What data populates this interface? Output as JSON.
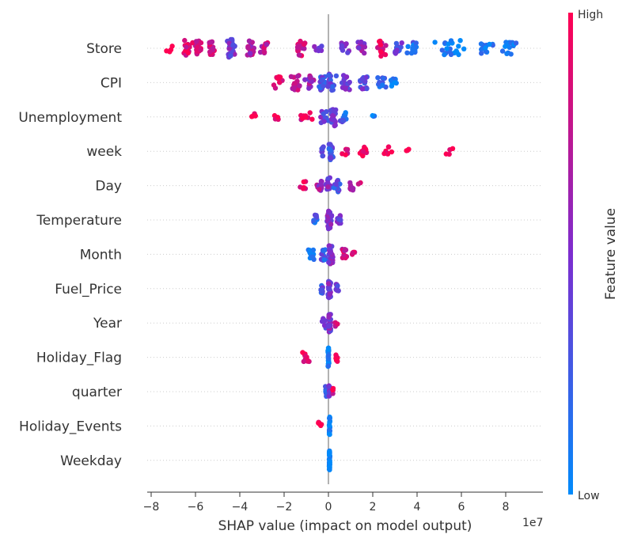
{
  "chart_data": {
    "type": "scatter",
    "subtype": "shap-beeswarm",
    "xlabel": "SHAP value (impact on model output)",
    "x_scale_note": "1e7",
    "xlim": [
      -8.5,
      9.5
    ],
    "xticks": [
      -8,
      -6,
      -4,
      -2,
      0,
      2,
      4,
      6,
      8
    ],
    "xtick_labels": [
      "−8",
      "−6",
      "−4",
      "−2",
      "0",
      "2",
      "4",
      "6",
      "8"
    ],
    "colorbar": {
      "label": "Feature value",
      "high_label": "High",
      "low_label": "Low",
      "high_color": "#ff0052",
      "low_color": "#008bfb"
    },
    "features": [
      {
        "name": "Store",
        "clusters": [
          [
            -7.2,
            0.6,
            1.0,
            4
          ],
          [
            -6.4,
            0.3,
            0.9,
            20
          ],
          [
            -5.9,
            0.3,
            0.85,
            18
          ],
          [
            -5.3,
            0.3,
            0.8,
            16
          ],
          [
            -4.4,
            0.25,
            0.45,
            24
          ],
          [
            -3.5,
            0.3,
            0.7,
            18
          ],
          [
            -2.9,
            0.3,
            0.75,
            12
          ],
          [
            -1.3,
            0.3,
            0.8,
            20
          ],
          [
            -0.5,
            0.4,
            0.5,
            6
          ],
          [
            0.7,
            0.3,
            0.55,
            12
          ],
          [
            1.5,
            0.3,
            0.6,
            14
          ],
          [
            2.4,
            0.25,
            0.85,
            20
          ],
          [
            3.1,
            0.3,
            0.4,
            14
          ],
          [
            3.8,
            0.35,
            0.2,
            16
          ],
          [
            5.5,
            0.8,
            0.05,
            20
          ],
          [
            7.1,
            0.5,
            0.1,
            14
          ],
          [
            8.2,
            0.4,
            0.05,
            14
          ]
        ]
      },
      {
        "name": "CPI",
        "clusters": [
          [
            -2.3,
            0.35,
            0.9,
            14
          ],
          [
            -1.5,
            0.3,
            0.75,
            18
          ],
          [
            -0.8,
            0.3,
            0.6,
            16
          ],
          [
            -0.3,
            0.25,
            0.3,
            20
          ],
          [
            0.1,
            0.3,
            0.35,
            22
          ],
          [
            0.8,
            0.3,
            0.45,
            18
          ],
          [
            1.6,
            0.35,
            0.4,
            14
          ],
          [
            2.4,
            0.4,
            0.2,
            12
          ],
          [
            3.0,
            0.25,
            0.05,
            8
          ]
        ]
      },
      {
        "name": "Unemployment",
        "clusters": [
          [
            -3.4,
            0.2,
            1.0,
            4
          ],
          [
            -2.4,
            0.2,
            1.0,
            4
          ],
          [
            -1.0,
            0.4,
            0.9,
            10
          ],
          [
            -0.2,
            0.3,
            0.4,
            14
          ],
          [
            0.2,
            0.2,
            0.45,
            28
          ],
          [
            0.7,
            0.3,
            0.2,
            10
          ],
          [
            2.0,
            0.15,
            0.05,
            3
          ]
        ]
      },
      {
        "name": "week",
        "clusters": [
          [
            -0.3,
            0.2,
            0.4,
            10
          ],
          [
            0.1,
            0.15,
            0.3,
            22
          ],
          [
            0.7,
            0.3,
            0.9,
            6
          ],
          [
            1.6,
            0.35,
            0.95,
            10
          ],
          [
            2.6,
            0.4,
            0.95,
            8
          ],
          [
            3.6,
            0.2,
            1.0,
            3
          ],
          [
            5.5,
            0.3,
            1.0,
            4
          ]
        ]
      },
      {
        "name": "Day",
        "clusters": [
          [
            -1.2,
            0.2,
            0.95,
            6
          ],
          [
            -0.4,
            0.25,
            0.6,
            10
          ],
          [
            0.0,
            0.15,
            0.5,
            20
          ],
          [
            0.4,
            0.2,
            0.3,
            14
          ],
          [
            1.0,
            0.25,
            0.7,
            8
          ],
          [
            1.4,
            0.1,
            0.9,
            2
          ]
        ]
      },
      {
        "name": "Temperature",
        "clusters": [
          [
            -0.6,
            0.2,
            0.25,
            10
          ],
          [
            0.05,
            0.18,
            0.5,
            36
          ],
          [
            0.5,
            0.15,
            0.4,
            10
          ]
        ]
      },
      {
        "name": "Month",
        "clusters": [
          [
            -0.8,
            0.25,
            0.1,
            10
          ],
          [
            -0.2,
            0.2,
            0.25,
            14
          ],
          [
            0.1,
            0.15,
            0.5,
            26
          ],
          [
            0.7,
            0.25,
            0.8,
            12
          ],
          [
            1.1,
            0.1,
            0.9,
            4
          ]
        ]
      },
      {
        "name": "Fuel_Price",
        "clusters": [
          [
            -0.3,
            0.12,
            0.3,
            12
          ],
          [
            0.05,
            0.1,
            0.5,
            28
          ],
          [
            0.4,
            0.1,
            0.4,
            10
          ]
        ]
      },
      {
        "name": "Year",
        "clusters": [
          [
            -0.2,
            0.1,
            0.4,
            10
          ],
          [
            0.05,
            0.08,
            0.5,
            24
          ],
          [
            0.35,
            0.08,
            0.85,
            4
          ]
        ]
      },
      {
        "name": "Holiday_Flag",
        "clusters": [
          [
            -1.0,
            0.25,
            0.97,
            10
          ],
          [
            0.0,
            0.03,
            0.0,
            30
          ],
          [
            0.4,
            0.1,
            0.95,
            6
          ]
        ]
      },
      {
        "name": "quarter",
        "clusters": [
          [
            -0.1,
            0.06,
            0.3,
            10
          ],
          [
            0.05,
            0.05,
            0.5,
            16
          ],
          [
            0.2,
            0.05,
            0.9,
            4
          ]
        ]
      },
      {
        "name": "Holiday_Events",
        "clusters": [
          [
            -0.4,
            0.12,
            0.95,
            6
          ],
          [
            0.05,
            0.03,
            0.0,
            26
          ]
        ]
      },
      {
        "name": "Weekday",
        "clusters": [
          [
            0.05,
            0.02,
            0.0,
            40
          ]
        ]
      }
    ]
  }
}
